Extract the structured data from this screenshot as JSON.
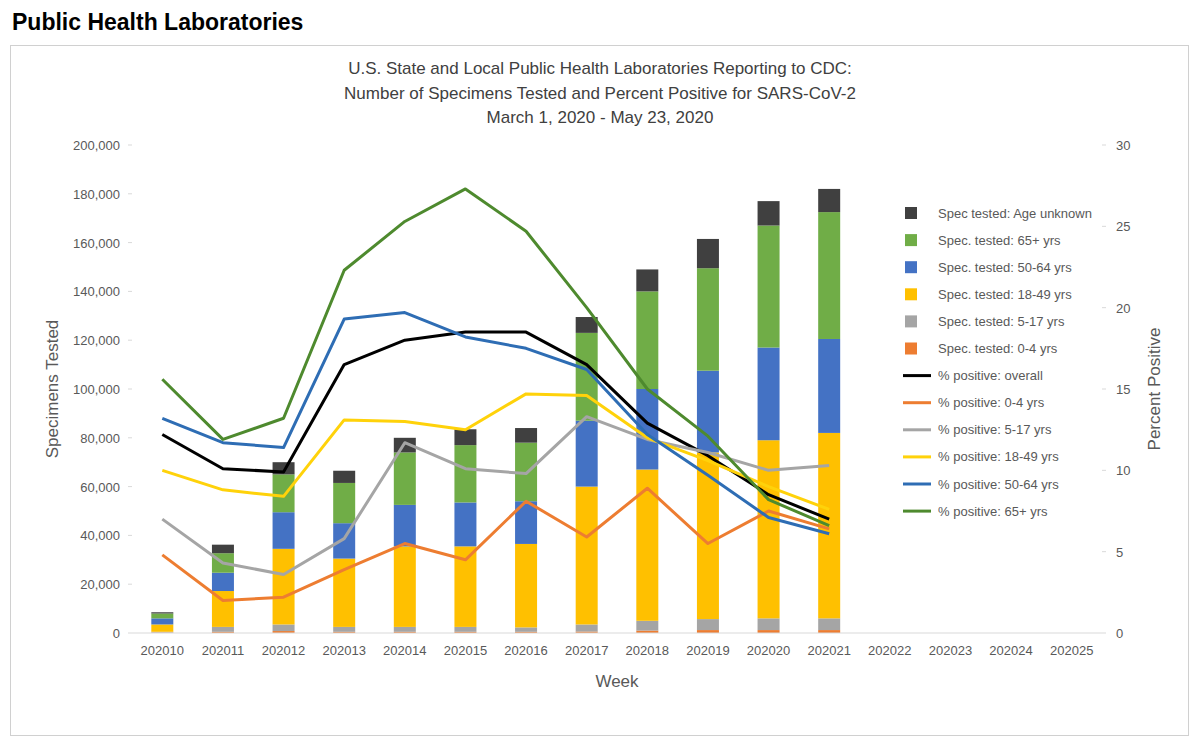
{
  "header": "Public Health Laboratories",
  "chart_data": {
    "type": "bar",
    "title": "U.S. State and Local Public Health Laboratories Reporting to CDC:\nNumber of Specimens Tested and Percent Positive for SARS-CoV-2\nMarch 1, 2020 - May 23, 2020",
    "x_label": "Week",
    "y_label": "Specimens Tested",
    "y2_label": "Percent Positive",
    "stacked": true,
    "grid": false,
    "legend": "right",
    "categories": [
      "202010",
      "202011",
      "202012",
      "202013",
      "202014",
      "202015",
      "202016",
      "202017",
      "202018",
      "202019",
      "202020",
      "202021",
      "202022",
      "202023",
      "202024",
      "202025"
    ],
    "ylim": [
      0,
      200000
    ],
    "yticks": [
      0,
      {
        "value": 20000,
        "label": "20,000"
      },
      {
        "value": 40000,
        "label": "40,000"
      },
      {
        "value": 60000,
        "label": "60,000"
      },
      {
        "value": 80000,
        "label": "80,000"
      },
      {
        "value": 100000,
        "label": "100,000"
      },
      {
        "value": 120000,
        "label": "120,000"
      },
      {
        "value": 140000,
        "label": "140,000"
      },
      {
        "value": 160000,
        "label": "160,000"
      },
      {
        "value": 180000,
        "label": "180,000"
      },
      {
        "value": 200000,
        "label": "200,000"
      }
    ],
    "y2lim": [
      0,
      30
    ],
    "y2ticks": [
      0,
      5,
      10,
      15,
      20,
      25,
      30
    ],
    "series": [
      {
        "name": "Spec. tested: 0-4 yrs",
        "type": "bar",
        "color": "#ED7D31",
        "values": [
          200,
          500,
          800,
          500,
          500,
          500,
          500,
          600,
          1000,
          1200,
          1200,
          1200,
          null,
          null,
          null,
          null
        ]
      },
      {
        "name": "Spec. tested: 5-17 yrs",
        "type": "bar",
        "color": "#A5A5A5",
        "values": [
          300,
          2000,
          2700,
          2000,
          2000,
          2000,
          1800,
          2900,
          4000,
          4500,
          4800,
          4800,
          null,
          null,
          null,
          null
        ]
      },
      {
        "name": "Spec. tested: 18-49 yrs",
        "type": "bar",
        "color": "#FFC000",
        "values": [
          3000,
          14700,
          31000,
          28000,
          33000,
          33000,
          34200,
          56500,
          62000,
          68300,
          73000,
          76000,
          null,
          null,
          null,
          null
        ]
      },
      {
        "name": "Spec. tested: 50-64 yrs",
        "type": "bar",
        "color": "#4472C4",
        "values": [
          2500,
          7500,
          15000,
          14500,
          17000,
          18000,
          17500,
          27000,
          33000,
          33500,
          38000,
          38500,
          null,
          null,
          null,
          null
        ]
      },
      {
        "name": "Spec. tested: 65+ yrs",
        "type": "bar",
        "color": "#70AD47",
        "values": [
          2000,
          8000,
          15500,
          16500,
          21500,
          23500,
          24000,
          36000,
          40000,
          42000,
          50000,
          52000,
          null,
          null,
          null,
          null
        ]
      },
      {
        "name": "Spec tested: Age unknown",
        "type": "bar",
        "color": "#404040",
        "values": [
          500,
          3500,
          5000,
          5000,
          6000,
          6500,
          6000,
          6500,
          9000,
          12000,
          10000,
          9500,
          null,
          null,
          null,
          null
        ]
      },
      {
        "name": "% positive: overall",
        "type": "line",
        "axis": "y2",
        "color": "#000000",
        "values": [
          12.2,
          10.1,
          9.9,
          16.5,
          18.0,
          18.5,
          18.5,
          16.5,
          12.9,
          10.9,
          8.5,
          7.0,
          null,
          null,
          null,
          null
        ]
      },
      {
        "name": "% positive: 0-4 yrs",
        "type": "line",
        "axis": "y2",
        "color": "#ED7D31",
        "values": [
          4.8,
          2.0,
          2.2,
          3.9,
          5.5,
          4.5,
          8.1,
          5.9,
          8.9,
          5.5,
          7.5,
          6.4,
          null,
          null,
          null,
          null
        ]
      },
      {
        "name": "% positive: 5-17 yrs",
        "type": "line",
        "axis": "y2",
        "color": "#A5A5A5",
        "values": [
          7.0,
          4.3,
          3.6,
          5.8,
          11.7,
          10.1,
          9.8,
          13.3,
          11.9,
          11.1,
          10.0,
          10.3,
          null,
          null,
          null,
          null
        ]
      },
      {
        "name": "% positive: 18-49 yrs",
        "type": "line",
        "axis": "y2",
        "color": "#FFD20A",
        "values": [
          10.0,
          8.8,
          8.4,
          13.1,
          13.0,
          12.5,
          14.7,
          14.6,
          12.0,
          10.6,
          9.0,
          7.6,
          null,
          null,
          null,
          null
        ]
      },
      {
        "name": "% positive: 50-64 yrs",
        "type": "line",
        "axis": "y2",
        "color": "#2E6DB4",
        "values": [
          13.2,
          11.7,
          11.4,
          19.3,
          19.7,
          18.2,
          17.5,
          16.2,
          12.2,
          9.7,
          7.1,
          6.1,
          null,
          null,
          null,
          null
        ]
      },
      {
        "name": "% positive: 65+ yrs",
        "type": "line",
        "axis": "y2",
        "color": "#4E8A2E",
        "values": [
          15.6,
          11.9,
          13.2,
          22.3,
          25.3,
          27.3,
          24.7,
          20.0,
          15.0,
          12.1,
          8.2,
          6.6,
          null,
          null,
          null,
          null
        ]
      }
    ]
  }
}
